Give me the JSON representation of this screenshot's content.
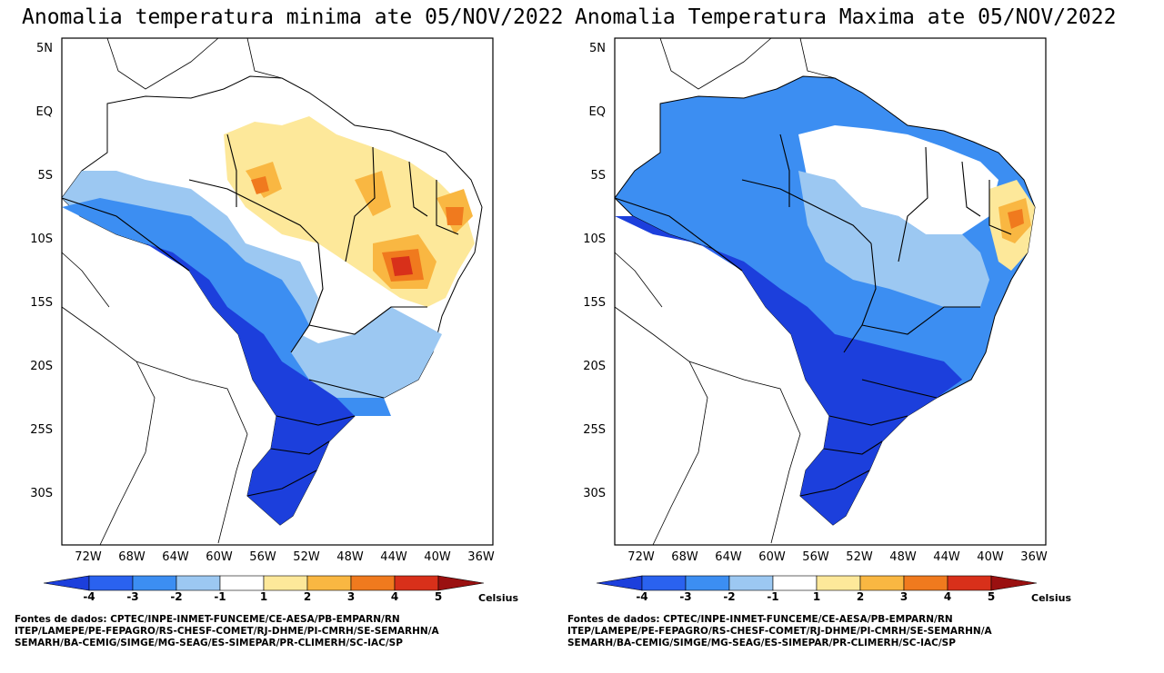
{
  "panels": [
    {
      "id": "min",
      "title": "Anomalia temperatura minima ate 05/NOV/2022"
    },
    {
      "id": "max",
      "title": "Anomalia Temperatura Maxima ate 05/NOV/2022"
    }
  ],
  "axes": {
    "lat_ticks": [
      "5N",
      "EQ",
      "5S",
      "10S",
      "15S",
      "20S",
      "25S",
      "30S"
    ],
    "lon_ticks": [
      "72W",
      "68W",
      "64W",
      "60W",
      "56W",
      "52W",
      "48W",
      "44W",
      "40W",
      "36W"
    ]
  },
  "colorbar": {
    "labels": [
      "-4",
      "-3",
      "-2",
      "-1",
      "1",
      "2",
      "3",
      "4",
      "5"
    ],
    "unit": "Celsius",
    "colors": [
      "#1c3fdc",
      "#2a62ef",
      "#3c8ef2",
      "#9cc8f2",
      "#ffffff",
      "#fde89a",
      "#f9b742",
      "#f07a1e",
      "#d8301a",
      "#9a1010"
    ]
  },
  "sources": [
    "Fontes de dados: CPTEC/INPE-INMET-FUNCEME/CE-AESA/PB-EMPARN/RN",
    "ITEP/LAMEPE/PE-FEPAGRO/RS-CHESF-COMET/RJ-DHME/PI-CMRH/SE-SEMARHN/A",
    "SEMARH/BA-CEMIG/SIMGE/MG-SEAG/ES-SIMEPAR/PR-CLIMERH/SC-IAC/SP"
  ]
}
